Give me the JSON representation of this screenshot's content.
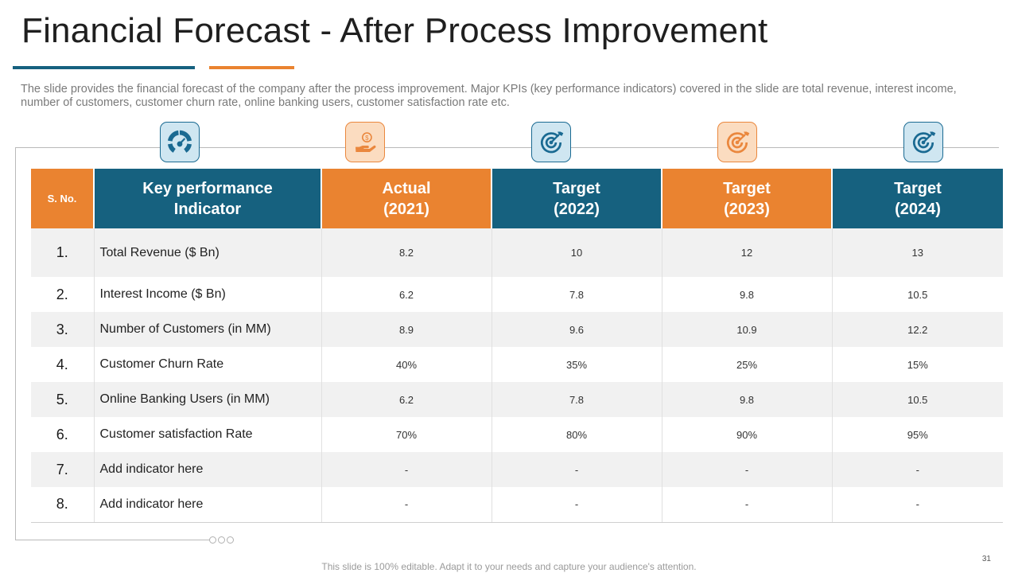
{
  "title": "Financial Forecast - After Process Improvement",
  "description": "The slide provides the financial forecast of the company after the process improvement. Major KPIs (key performance indicators) covered in the slide are total revenue, interest income, number of customers, customer churn rate, online banking users, customer satisfaction rate etc.",
  "colors": {
    "blue": "#16617f",
    "orange": "#ea8330",
    "row_alt": "#f1f1f1"
  },
  "icons": [
    "speedometer-icon",
    "money-hand-icon",
    "target-icon",
    "target-icon",
    "target-icon"
  ],
  "table": {
    "headers": {
      "sno": "S. No.",
      "kpi_line1": "Key performance",
      "kpi_line2": "Indicator",
      "c1_line1": "Actual",
      "c1_line2": "(2021)",
      "c2_line1": "Target",
      "c2_line2": "(2022)",
      "c3_line1": "Target",
      "c3_line2": "(2023)",
      "c4_line1": "Target",
      "c4_line2": "(2024)"
    },
    "rows": [
      {
        "no": "1.",
        "indicator": "Total Revenue ($ Bn)",
        "v": [
          "8.2",
          "10",
          "12",
          "13"
        ]
      },
      {
        "no": "2.",
        "indicator": "Interest Income ($ Bn)",
        "v": [
          "6.2",
          "7.8",
          "9.8",
          "10.5"
        ]
      },
      {
        "no": "3.",
        "indicator": "Number of Customers (in MM)",
        "v": [
          "8.9",
          "9.6",
          "10.9",
          "12.2"
        ]
      },
      {
        "no": "4.",
        "indicator": "Customer Churn Rate",
        "v": [
          "40%",
          "35%",
          "25%",
          "15%"
        ]
      },
      {
        "no": "5.",
        "indicator": "Online Banking Users (in MM)",
        "v": [
          "6.2",
          "7.8",
          "9.8",
          "10.5"
        ]
      },
      {
        "no": "6.",
        "indicator": "Customer satisfaction Rate",
        "v": [
          "70%",
          "80%",
          "90%",
          "95%"
        ]
      },
      {
        "no": "7.",
        "indicator": "Add indicator here",
        "v": [
          "-",
          "-",
          "-",
          "-"
        ]
      },
      {
        "no": "8.",
        "indicator": "Add indicator here",
        "v": [
          "-",
          "-",
          "-",
          "-"
        ]
      }
    ]
  },
  "page_number": "31",
  "footer": "This slide is 100% editable. Adapt it to your needs and capture your audience's attention."
}
